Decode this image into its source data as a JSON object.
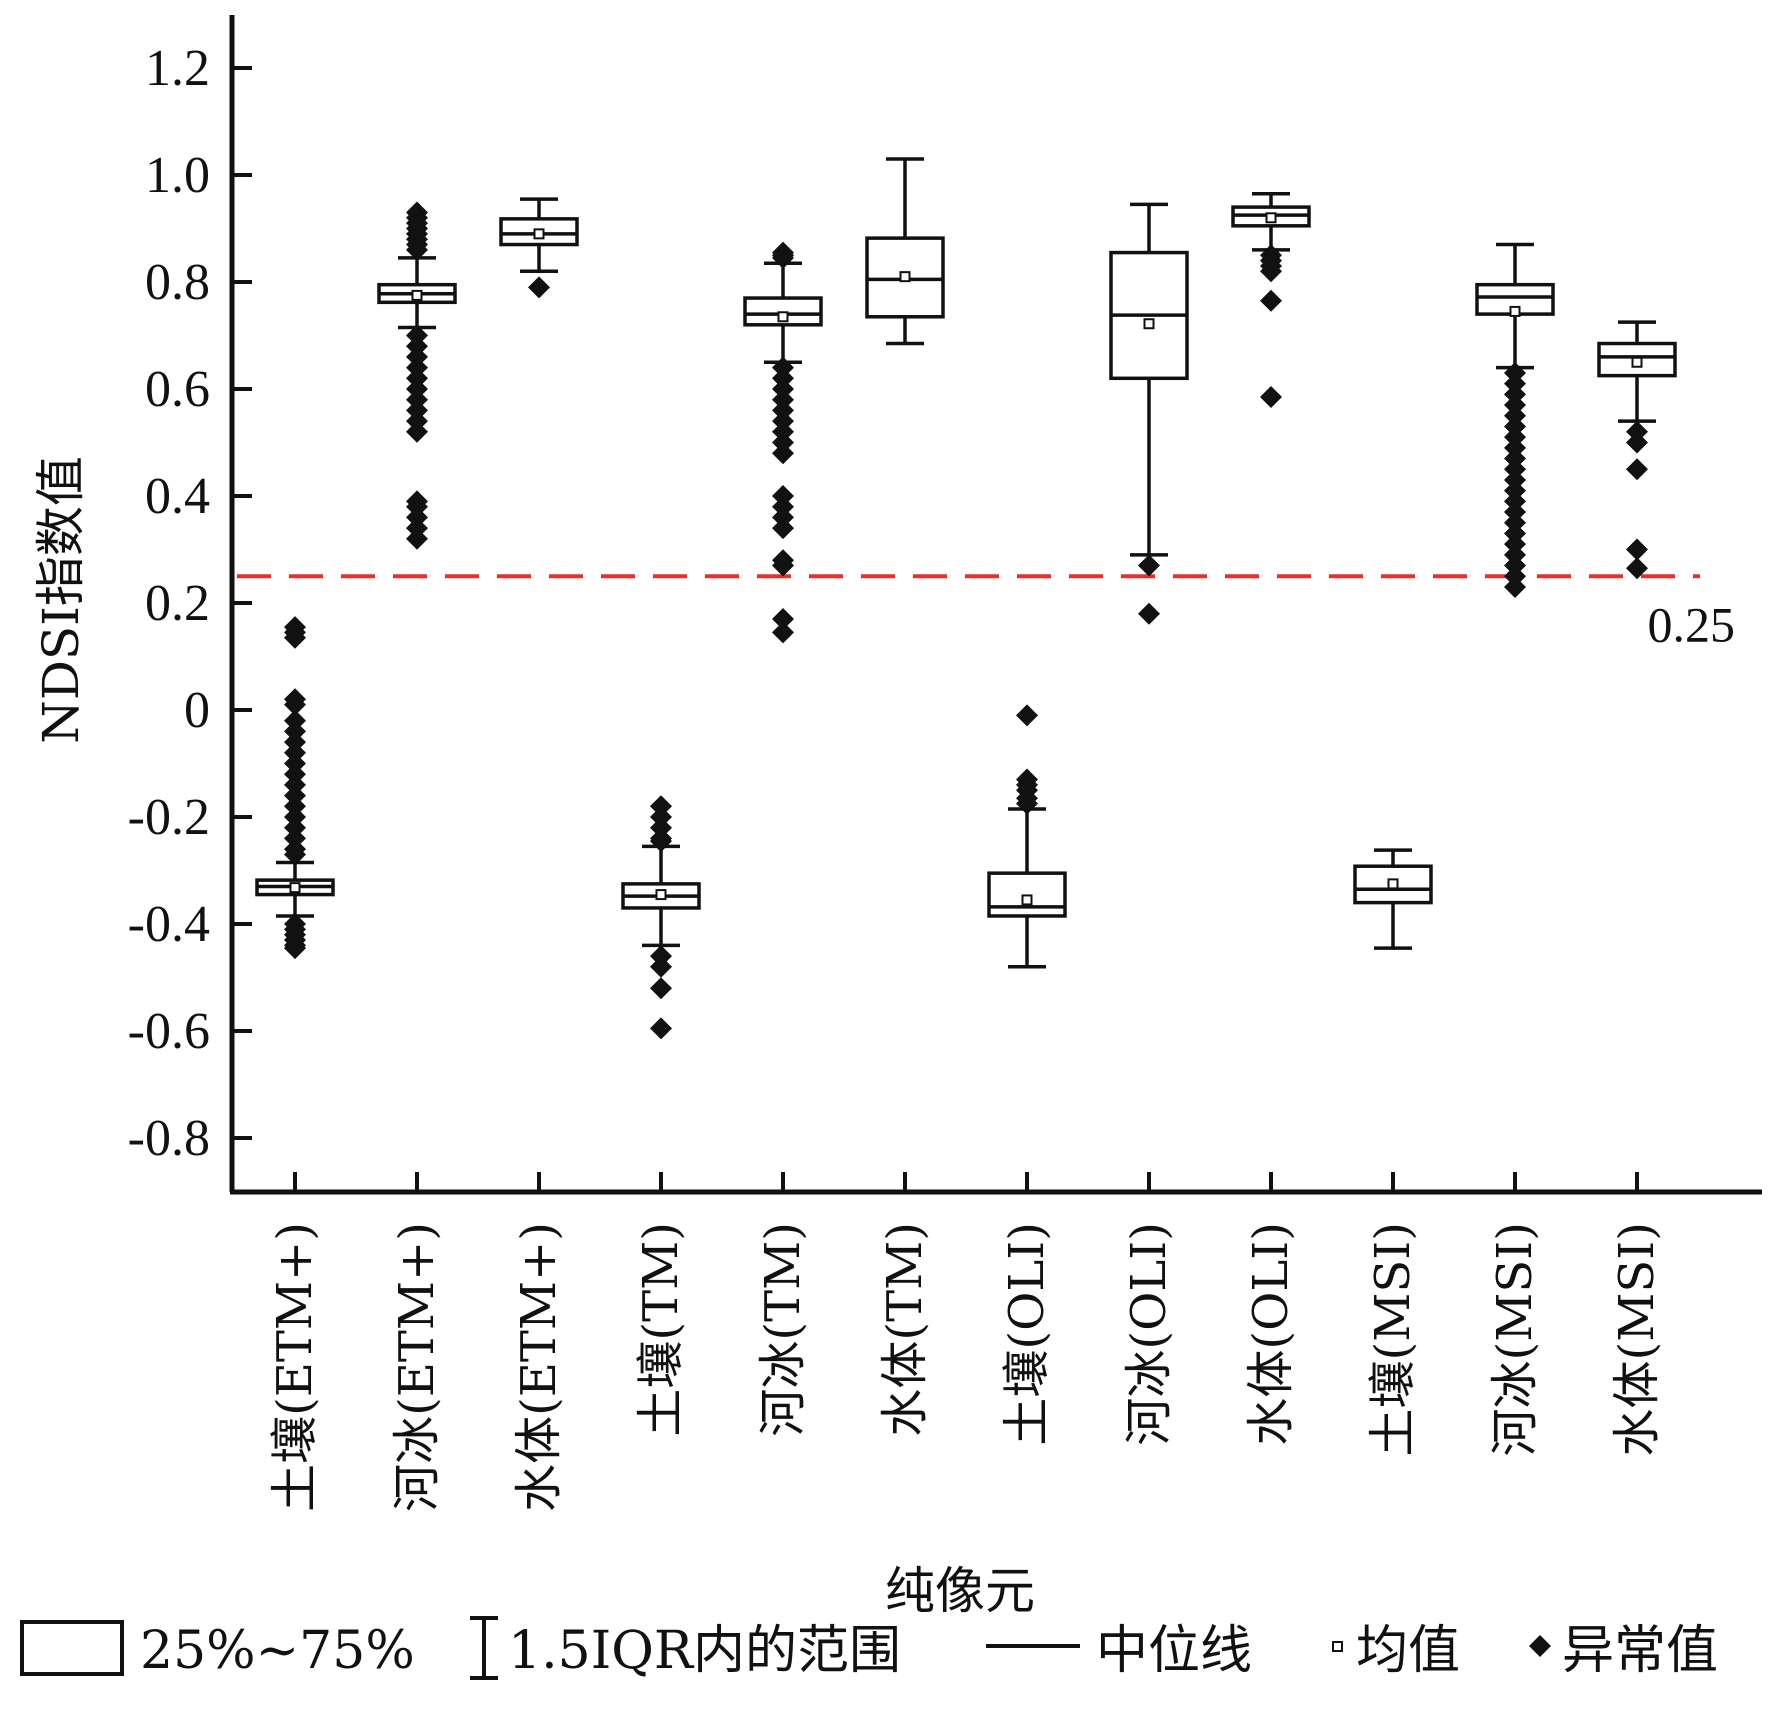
{
  "chart_data": {
    "type": "boxplot",
    "xlabel": "纯像元",
    "ylabel": "NDSI指数值",
    "ylim": [
      -0.9,
      1.3
    ],
    "yticks": [
      -0.8,
      -0.6,
      -0.4,
      -0.2,
      0,
      0.2,
      0.4,
      0.6,
      0.8,
      1.0,
      1.2
    ],
    "ytick_labels": [
      "-0.8",
      "-0.6",
      "-0.4",
      "-0.2",
      "0",
      "0.2",
      "0.4",
      "0.6",
      "0.8",
      "1.0",
      "1.2"
    ],
    "reference_line": {
      "value": 0.25,
      "label": "0.25",
      "color": "#e8302a",
      "style": "dashed"
    },
    "categories": [
      "土壤(ETM+)",
      "河冰(ETM+)",
      "水体(ETM+)",
      "土壤(TM)",
      "河冰(TM)",
      "水体(TM)",
      "土壤(OLI)",
      "河冰(OLI)",
      "水体(OLI)",
      "土壤(MSI)",
      "河冰(MSI)",
      "水体(MSI)"
    ],
    "boxes": [
      {
        "whisker_low": -0.385,
        "q1": -0.345,
        "median": -0.33,
        "q3": -0.318,
        "whisker_high": -0.285,
        "mean": -0.332,
        "outliers": [
          0.155,
          0.145,
          0.135,
          0.02,
          0.01,
          -0.02,
          -0.04,
          -0.06,
          -0.08,
          -0.1,
          -0.12,
          -0.14,
          -0.16,
          -0.18,
          -0.2,
          -0.22,
          -0.24,
          -0.26,
          -0.27,
          -0.4,
          -0.41,
          -0.42,
          -0.43,
          -0.44,
          -0.445
        ]
      },
      {
        "whisker_low": 0.715,
        "q1": 0.762,
        "median": 0.778,
        "q3": 0.795,
        "whisker_high": 0.845,
        "mean": 0.775,
        "outliers": [
          0.93,
          0.92,
          0.91,
          0.9,
          0.89,
          0.88,
          0.87,
          0.86,
          0.7,
          0.68,
          0.66,
          0.64,
          0.62,
          0.6,
          0.58,
          0.56,
          0.54,
          0.52,
          0.39,
          0.38,
          0.36,
          0.34,
          0.32
        ]
      },
      {
        "whisker_low": 0.82,
        "q1": 0.87,
        "median": 0.89,
        "q3": 0.918,
        "whisker_high": 0.955,
        "mean": 0.89,
        "outliers": [
          0.79
        ]
      },
      {
        "whisker_low": -0.44,
        "q1": -0.37,
        "median": -0.348,
        "q3": -0.325,
        "whisker_high": -0.255,
        "mean": -0.345,
        "outliers": [
          -0.18,
          -0.2,
          -0.22,
          -0.24,
          -0.245,
          -0.46,
          -0.48,
          -0.52,
          -0.595
        ]
      },
      {
        "whisker_low": 0.65,
        "q1": 0.72,
        "median": 0.74,
        "q3": 0.77,
        "whisker_high": 0.835,
        "mean": 0.735,
        "outliers": [
          0.855,
          0.85,
          0.845,
          0.64,
          0.62,
          0.6,
          0.58,
          0.56,
          0.54,
          0.52,
          0.5,
          0.48,
          0.4,
          0.38,
          0.36,
          0.34,
          0.28,
          0.27,
          0.17,
          0.145
        ]
      },
      {
        "whisker_low": 0.685,
        "q1": 0.735,
        "median": 0.805,
        "q3": 0.882,
        "whisker_high": 1.03,
        "mean": 0.81,
        "outliers": []
      },
      {
        "whisker_low": -0.48,
        "q1": -0.385,
        "median": -0.368,
        "q3": -0.305,
        "whisker_high": -0.185,
        "mean": -0.355,
        "outliers": [
          -0.01,
          -0.13,
          -0.14,
          -0.15,
          -0.165,
          -0.175
        ]
      },
      {
        "whisker_low": 0.29,
        "q1": 0.62,
        "median": 0.738,
        "q3": 0.855,
        "whisker_high": 0.945,
        "mean": 0.722,
        "outliers": [
          0.27,
          0.18
        ]
      },
      {
        "whisker_low": 0.86,
        "q1": 0.905,
        "median": 0.925,
        "q3": 0.94,
        "whisker_high": 0.965,
        "mean": 0.92,
        "outliers": [
          0.85,
          0.84,
          0.83,
          0.82,
          0.765,
          0.585
        ]
      },
      {
        "whisker_low": -0.445,
        "q1": -0.36,
        "median": -0.335,
        "q3": -0.292,
        "whisker_high": -0.262,
        "mean": -0.325,
        "outliers": []
      },
      {
        "whisker_low": 0.64,
        "q1": 0.74,
        "median": 0.772,
        "q3": 0.795,
        "whisker_high": 0.87,
        "mean": 0.745,
        "outliers": [
          0.63,
          0.61,
          0.59,
          0.57,
          0.55,
          0.53,
          0.51,
          0.49,
          0.47,
          0.45,
          0.43,
          0.41,
          0.39,
          0.37,
          0.35,
          0.33,
          0.31,
          0.29,
          0.27,
          0.25,
          0.23
        ]
      },
      {
        "whisker_low": 0.54,
        "q1": 0.625,
        "median": 0.66,
        "q3": 0.685,
        "whisker_high": 0.725,
        "mean": 0.65,
        "outliers": [
          0.52,
          0.5,
          0.45,
          0.3,
          0.265
        ]
      }
    ],
    "legend": [
      {
        "symbol": "box",
        "label": "25%~75%"
      },
      {
        "symbol": "whisker",
        "label": "1.5IQR内的范围"
      },
      {
        "symbol": "median-line",
        "label": "中位线"
      },
      {
        "symbol": "mean-square",
        "label": "均值"
      },
      {
        "symbol": "outlier-diamond",
        "label": "异常值"
      }
    ]
  }
}
